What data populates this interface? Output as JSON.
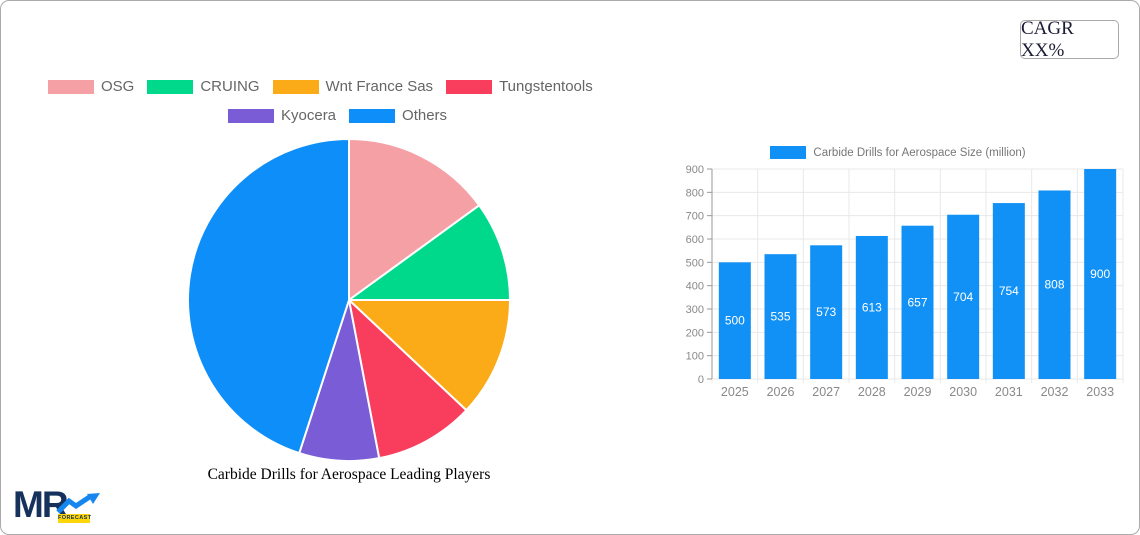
{
  "page": {
    "background": "#ffffff",
    "frame_border_color": "#ababab"
  },
  "cagr_badge": {
    "label": "CAGR XX%"
  },
  "chart_data": [
    {
      "type": "pie",
      "title": "Carbide Drills for Aerospace Leading Players",
      "legend_position": "top",
      "direction": "clockwise",
      "start_angle_deg": 0,
      "slice_border_color": "#ffffff",
      "series": [
        {
          "label": "OSG",
          "value_pct": 15,
          "color": "#F5A0A5"
        },
        {
          "label": "CRUING",
          "value_pct": 10,
          "color": "#00D98C"
        },
        {
          "label": "Wnt France Sas",
          "value_pct": 12,
          "color": "#FBAB17"
        },
        {
          "label": "Tungstentools",
          "value_pct": 10,
          "color": "#F93D5C"
        },
        {
          "label": "Kyocera",
          "value_pct": 8,
          "color": "#7A5CD6"
        },
        {
          "label": "Others",
          "value_pct": 45,
          "color": "#0D8EF8"
        }
      ],
      "values_note": "percentages estimated from slice angles; values not labeled in image",
      "legend_rows": [
        [
          "OSG",
          "CRUING",
          "Wnt France Sas",
          "Tungstentools"
        ],
        [
          "Kyocera",
          "Others"
        ]
      ]
    },
    {
      "type": "bar",
      "legend_label": "Carbide Drills for Aerospace Size (million)",
      "categories": [
        "2025",
        "2026",
        "2027",
        "2028",
        "2029",
        "2030",
        "2031",
        "2032",
        "2033"
      ],
      "values": [
        500,
        535,
        573,
        613,
        657,
        704,
        754,
        808,
        900
      ],
      "bar_color": "#1191F5",
      "value_label_color": "#ffffff",
      "ylim": [
        0,
        900
      ],
      "ytick_step": 100,
      "yticks": [
        0,
        100,
        200,
        300,
        400,
        500,
        600,
        700,
        800,
        900
      ],
      "grid": true,
      "grid_color": "#e8e8e8",
      "axis_color": "#999999",
      "tick_label_color": "#898989",
      "legend_position": "top"
    }
  ],
  "logo": {
    "text": "MR",
    "badge": "FORECAST",
    "navy": "#16325c",
    "arrow_blue": "#1787f0",
    "yellow": "#ffd60a"
  }
}
